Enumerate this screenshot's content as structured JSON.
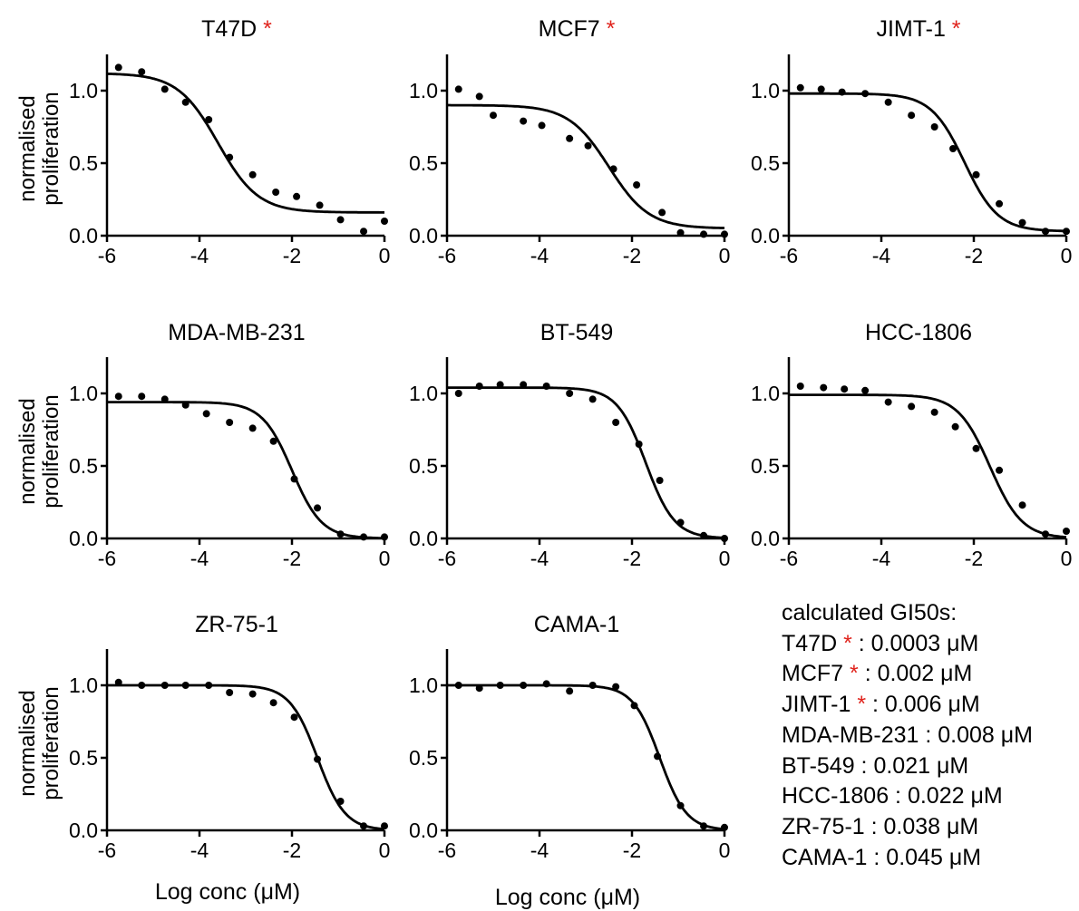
{
  "marker": "*",
  "marker_color": "#e0231c",
  "curve_color": "#000000",
  "point_color": "#000000",
  "chart_data": [
    {
      "type": "scatter",
      "title": "T47D",
      "starred": true,
      "xlabel": "",
      "ylabel": "normalised proliferation",
      "xlim": [
        -6,
        0
      ],
      "ylim": [
        0,
        1.2
      ],
      "xticks": [
        "-6",
        "-4",
        "-2",
        "0"
      ],
      "yticks": [
        "0.0",
        "0.5",
        "1.0"
      ],
      "x": [
        -5.75,
        -5.25,
        -4.75,
        -4.3,
        -3.8,
        -3.35,
        -2.85,
        -2.35,
        -1.9,
        -1.4,
        -0.95,
        -0.45,
        0.0
      ],
      "y": [
        1.16,
        1.13,
        1.01,
        0.92,
        0.8,
        0.54,
        0.42,
        0.3,
        0.27,
        0.21,
        0.11,
        0.03,
        0.1
      ],
      "fit": {
        "top": 1.12,
        "bottom": 0.16,
        "log_ic50": -3.6,
        "hill": 1.0
      }
    },
    {
      "type": "scatter",
      "title": "MCF7",
      "starred": true,
      "xlabel": "",
      "ylabel": "",
      "xlim": [
        -6,
        0
      ],
      "ylim": [
        0,
        1.2
      ],
      "xticks": [
        "-6",
        "-4",
        "-2",
        "0"
      ],
      "yticks": [
        "0.0",
        "0.5",
        "1.0"
      ],
      "x": [
        -5.75,
        -5.3,
        -5.0,
        -4.35,
        -3.95,
        -3.35,
        -2.95,
        -2.4,
        -1.9,
        -1.35,
        -0.95,
        -0.45,
        0.0
      ],
      "y": [
        1.01,
        0.96,
        0.83,
        0.79,
        0.76,
        0.67,
        0.62,
        0.46,
        0.35,
        0.16,
        0.02,
        0.01,
        0.01
      ],
      "fit": {
        "top": 0.9,
        "bottom": 0.05,
        "log_ic50": -2.5,
        "hill": 1.0
      }
    },
    {
      "type": "scatter",
      "title": "JIMT-1",
      "starred": true,
      "xlabel": "",
      "ylabel": "",
      "xlim": [
        -6,
        0
      ],
      "ylim": [
        0,
        1.2
      ],
      "xticks": [
        "-6",
        "-4",
        "-2",
        "0"
      ],
      "yticks": [
        "0.0",
        "0.5",
        "1.0"
      ],
      "x": [
        -5.75,
        -5.3,
        -4.85,
        -4.35,
        -3.85,
        -3.35,
        -2.85,
        -2.45,
        -1.95,
        -1.45,
        -0.95,
        -0.45,
        0.0
      ],
      "y": [
        1.02,
        1.01,
        0.99,
        0.98,
        0.92,
        0.83,
        0.75,
        0.6,
        0.42,
        0.22,
        0.09,
        0.03,
        0.03
      ],
      "fit": {
        "top": 0.98,
        "bottom": 0.03,
        "log_ic50": -2.2,
        "hill": 1.2
      }
    },
    {
      "type": "scatter",
      "title": "MDA-MB-231",
      "starred": false,
      "xlabel": "",
      "ylabel": "normalised proliferation",
      "xlim": [
        -6,
        0
      ],
      "ylim": [
        0,
        1.2
      ],
      "xticks": [
        "-6",
        "-4",
        "-2",
        "0"
      ],
      "yticks": [
        "0.0",
        "0.5",
        "1.0"
      ],
      "x": [
        -5.75,
        -5.25,
        -4.75,
        -4.3,
        -3.85,
        -3.35,
        -2.85,
        -2.4,
        -1.95,
        -1.45,
        -0.95,
        -0.45,
        0.0
      ],
      "y": [
        0.98,
        0.98,
        0.96,
        0.92,
        0.86,
        0.8,
        0.76,
        0.67,
        0.41,
        0.21,
        0.03,
        0.01,
        0.01
      ],
      "fit": {
        "top": 0.94,
        "bottom": 0.0,
        "log_ic50": -2.0,
        "hill": 1.35
      }
    },
    {
      "type": "scatter",
      "title": "BT-549",
      "starred": false,
      "xlabel": "",
      "ylabel": "",
      "xlim": [
        -6,
        0
      ],
      "ylim": [
        0,
        1.2
      ],
      "xticks": [
        "-6",
        "-4",
        "-2",
        "0"
      ],
      "yticks": [
        "0.0",
        "0.5",
        "1.0"
      ],
      "x": [
        -5.75,
        -5.3,
        -4.85,
        -4.35,
        -3.85,
        -3.35,
        -2.85,
        -2.35,
        -1.85,
        -1.4,
        -0.95,
        -0.45,
        0.0
      ],
      "y": [
        1.0,
        1.05,
        1.06,
        1.06,
        1.05,
        1.0,
        0.96,
        0.8,
        0.65,
        0.4,
        0.11,
        0.02,
        0.0
      ],
      "fit": {
        "top": 1.04,
        "bottom": 0.0,
        "log_ic50": -1.7,
        "hill": 1.4
      }
    },
    {
      "type": "scatter",
      "title": "HCC-1806",
      "starred": false,
      "xlabel": "",
      "ylabel": "",
      "xlim": [
        -6,
        0
      ],
      "ylim": [
        0,
        1.2
      ],
      "xticks": [
        "-6",
        "-4",
        "-2",
        "0"
      ],
      "yticks": [
        "0.0",
        "0.5",
        "1.0"
      ],
      "x": [
        -5.75,
        -5.25,
        -4.8,
        -4.35,
        -3.85,
        -3.35,
        -2.85,
        -2.4,
        -1.95,
        -1.45,
        -0.95,
        -0.45,
        0.0
      ],
      "y": [
        1.05,
        1.04,
        1.03,
        1.02,
        0.94,
        0.91,
        0.87,
        0.77,
        0.62,
        0.47,
        0.23,
        0.03,
        0.05
      ],
      "fit": {
        "top": 0.99,
        "bottom": 0.0,
        "log_ic50": -1.65,
        "hill": 1.25
      }
    },
    {
      "type": "scatter",
      "title": "ZR-75-1",
      "starred": false,
      "xlabel": "Log conc (μM)",
      "ylabel": "normalised proliferation",
      "xlim": [
        -6,
        0
      ],
      "ylim": [
        0,
        1.2
      ],
      "xticks": [
        "-6",
        "-4",
        "-2",
        "0"
      ],
      "yticks": [
        "0.0",
        "0.5",
        "1.0"
      ],
      "x": [
        -5.75,
        -5.25,
        -4.75,
        -4.3,
        -3.8,
        -3.35,
        -2.85,
        -2.4,
        -1.95,
        -1.45,
        -0.95,
        -0.45,
        0.0
      ],
      "y": [
        1.02,
        1.0,
        1.0,
        1.0,
        1.0,
        0.95,
        0.94,
        0.88,
        0.78,
        0.49,
        0.2,
        0.03,
        0.03
      ],
      "fit": {
        "top": 1.0,
        "bottom": 0.0,
        "log_ic50": -1.45,
        "hill": 1.45
      }
    },
    {
      "type": "scatter",
      "title": "CAMA-1",
      "starred": false,
      "xlabel": "Log conc (μM)",
      "ylabel": "",
      "xlim": [
        -6,
        0
      ],
      "ylim": [
        0,
        1.2
      ],
      "xticks": [
        "-6",
        "-4",
        "-2",
        "0"
      ],
      "yticks": [
        "0.0",
        "0.5",
        "1.0"
      ],
      "x": [
        -5.75,
        -5.3,
        -4.85,
        -4.35,
        -3.85,
        -3.35,
        -2.85,
        -2.35,
        -1.95,
        -1.45,
        -0.95,
        -0.45,
        0.0
      ],
      "y": [
        1.0,
        0.98,
        1.0,
        1.0,
        1.01,
        0.96,
        1.0,
        0.99,
        0.86,
        0.51,
        0.17,
        0.03,
        0.02
      ],
      "fit": {
        "top": 1.0,
        "bottom": 0.0,
        "log_ic50": -1.4,
        "hill": 1.5
      }
    }
  ],
  "gi50": {
    "heading": "calculated GI50s:",
    "entries": [
      {
        "name": "T47D",
        "starred": true,
        "value": ": 0.0003 μM"
      },
      {
        "name": "MCF7",
        "starred": true,
        "value": ": 0.002 μM"
      },
      {
        "name": "JIMT-1",
        "starred": true,
        "value": ": 0.006 μM"
      },
      {
        "name": "MDA-MB-231",
        "starred": false,
        "value": ": 0.008 μM"
      },
      {
        "name": "BT-549",
        "starred": false,
        "value": ": 0.021 μM"
      },
      {
        "name": "HCC-1806",
        "starred": false,
        "value": ": 0.022 μM"
      },
      {
        "name": "ZR-75-1",
        "starred": false,
        "value": ": 0.038 μM"
      },
      {
        "name": "CAMA-1",
        "starred": false,
        "value": ": 0.045 μM"
      }
    ]
  }
}
